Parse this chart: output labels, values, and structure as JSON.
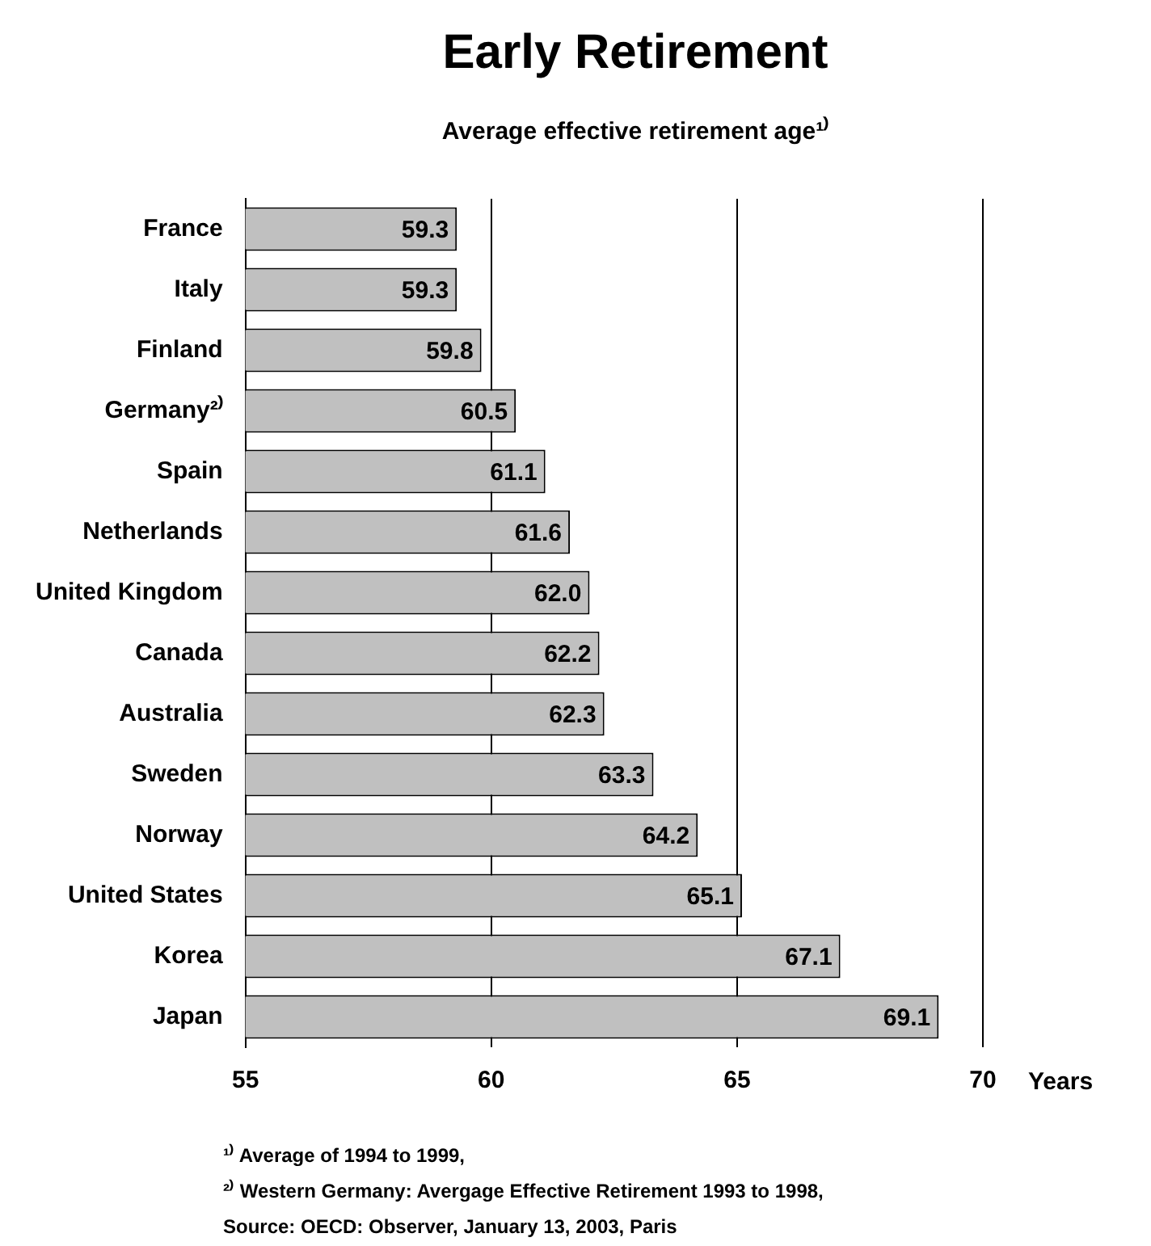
{
  "chart_data": {
    "type": "bar",
    "orientation": "horizontal",
    "title": "Early Retirement",
    "subtitle": "Average effective retirement age¹⁾",
    "xlabel": "Years",
    "categories": [
      "France",
      "Italy",
      "Finland",
      "Germany²⁾",
      "Spain",
      "Netherlands",
      "United Kingdom",
      "Canada",
      "Australia",
      "Sweden",
      "Norway",
      "United States",
      "Korea",
      "Japan"
    ],
    "values": [
      59.3,
      59.3,
      59.8,
      60.5,
      61.1,
      61.6,
      62.0,
      62.2,
      62.3,
      63.3,
      64.2,
      65.1,
      67.1,
      69.1
    ],
    "value_labels": [
      "59.3",
      "59.3",
      "59.8",
      "60.5",
      "61.1",
      "61.6",
      "62.0",
      "62.2",
      "62.3",
      "63.3",
      "64.2",
      "65.1",
      "67.1",
      "69.1"
    ],
    "color": "#c0c0c0",
    "xlim": [
      55,
      70
    ],
    "xticks": [
      55,
      60,
      65,
      70
    ],
    "grid": "x",
    "legend": false,
    "annotations": [
      "¹⁾ Average of 1994 to 1999,",
      "²⁾ Western Germany: Avergage Effective Retirement 1993 to 1998,",
      "Source: OECD: Observer, January 13, 2003, Paris"
    ]
  }
}
